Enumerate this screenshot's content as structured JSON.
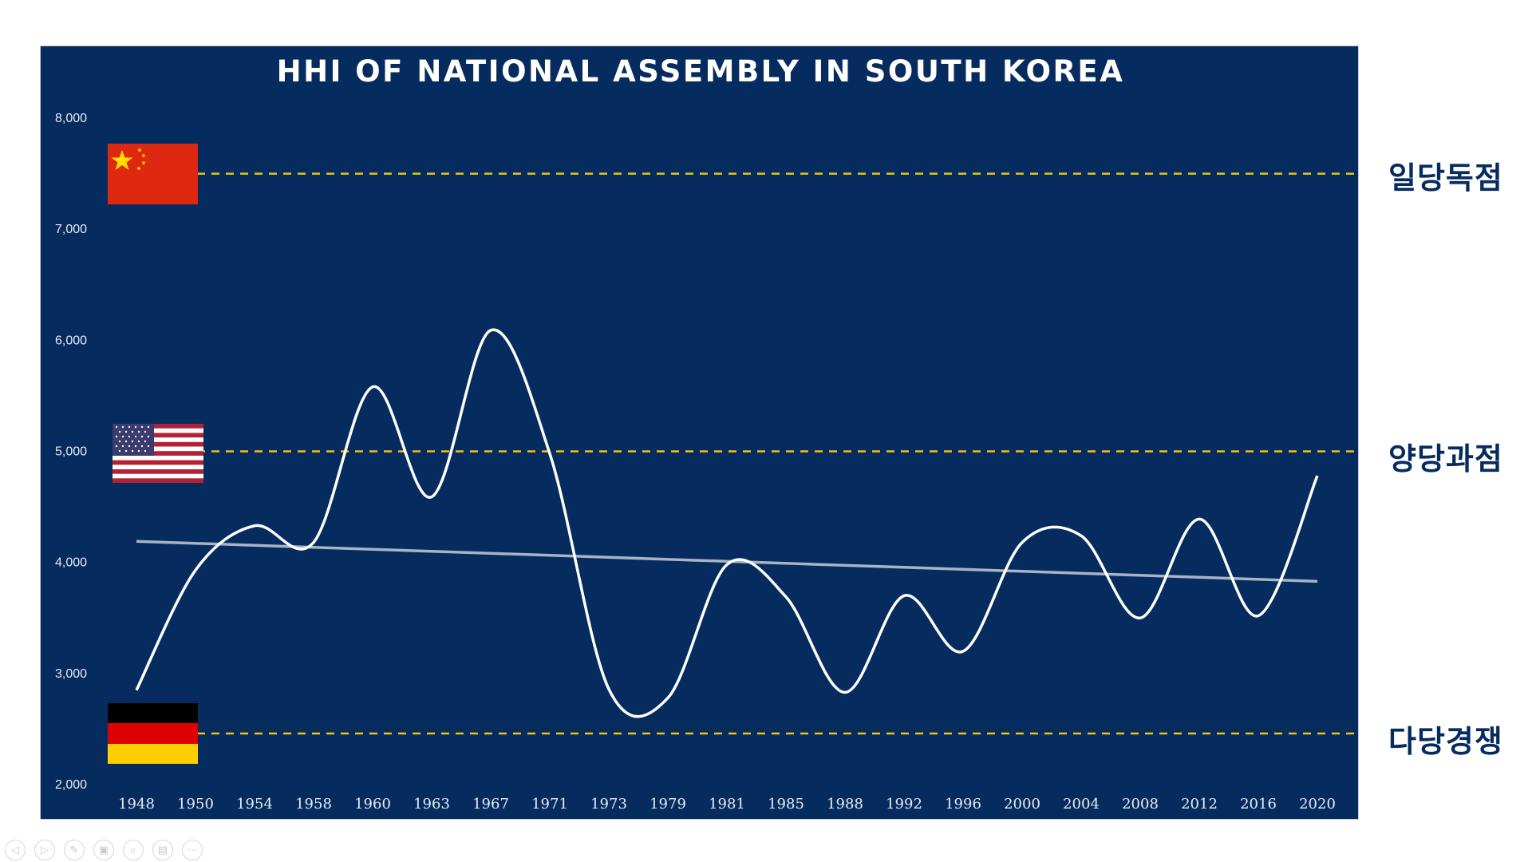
{
  "chart_data": {
    "type": "line",
    "title": "HHI OF NATIONAL ASSEMBLY IN SOUTH KOREA",
    "xlabel": "",
    "ylabel": "",
    "ylim": [
      2000,
      8000
    ],
    "yticks": [
      "2,000",
      "3,000",
      "4,000",
      "5,000",
      "6,000",
      "7,000",
      "8,000"
    ],
    "categories": [
      "1948",
      "1950",
      "1954",
      "1958",
      "1960",
      "1963",
      "1967",
      "1971",
      "1973",
      "1979",
      "1981",
      "1985",
      "1988",
      "1992",
      "1996",
      "2000",
      "2004",
      "2008",
      "2012",
      "2016",
      "2020"
    ],
    "series": [
      {
        "values": [
          2850,
          3930,
          4330,
          4180,
          5580,
          4590,
          6090,
          4980,
          2860,
          2780,
          3980,
          3690,
          2830,
          3700,
          3200,
          4180,
          4240,
          3500,
          4390,
          3520,
          4780
        ],
        "style": "smooth",
        "color": "#ffffff"
      }
    ],
    "trendline": {
      "start": 4190,
      "end": 3830,
      "color": "#a9b3c5"
    },
    "reference_lines": [
      {
        "value": 7500,
        "label": "일당독점",
        "flag": "china"
      },
      {
        "value": 5000,
        "label": "양당과점",
        "flag": "usa"
      },
      {
        "value": 2460,
        "label": "다당경쟁",
        "flag": "germany"
      }
    ],
    "reference_line_color": "#f2c20e",
    "background": "#062c5f",
    "grid": false,
    "legend": "none"
  },
  "icons": [
    "china-flag-icon",
    "usa-flag-icon",
    "germany-flag-icon"
  ],
  "controls": [
    {
      "name": "previous-slide-button",
      "glyph": "◁"
    },
    {
      "name": "next-slide-button",
      "glyph": "▷"
    },
    {
      "name": "pen-tool-button",
      "glyph": "✎"
    },
    {
      "name": "all-slides-button",
      "glyph": "▣"
    },
    {
      "name": "zoom-button",
      "glyph": "⌕"
    },
    {
      "name": "subtitles-button",
      "glyph": "▤"
    },
    {
      "name": "more-options-button",
      "glyph": "⋯"
    }
  ]
}
